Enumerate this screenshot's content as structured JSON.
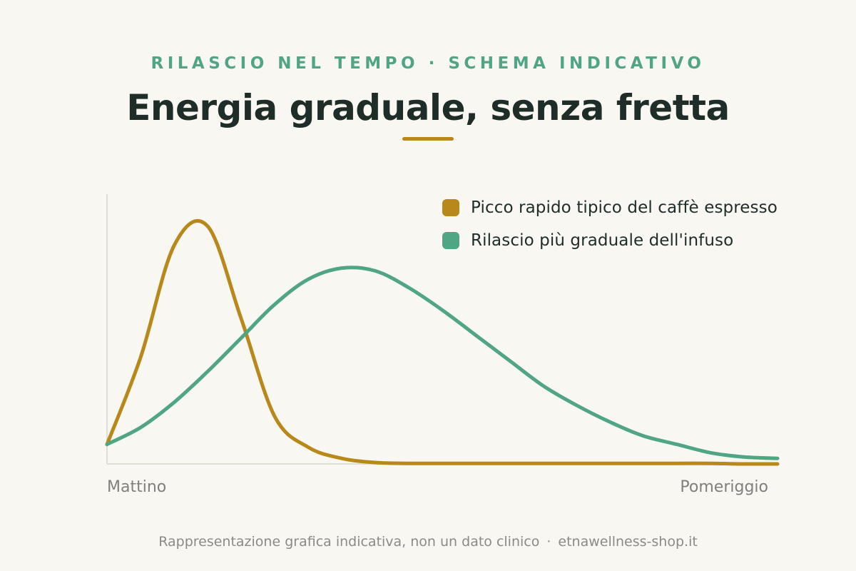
{
  "header": {
    "kicker": "RILASCIO NEL TEMPO · SCHEMA INDICATIVO",
    "title": "Energia graduale, senza fretta",
    "accent_color": "#b8891a"
  },
  "chart_data": {
    "type": "line",
    "title": "Energia graduale, senza fretta",
    "subtitle": "RILASCIO NEL TEMPO · SCHEMA INDICATIVO",
    "x_tick_labels": [
      "Mattino",
      "Pomeriggio"
    ],
    "xlim": [
      0,
      1
    ],
    "ylim": [
      0,
      1
    ],
    "grid": false,
    "y_axis_labels_shown": false,
    "legend_position": "top-right",
    "x": [
      0,
      0.05,
      0.1,
      0.15,
      0.2,
      0.25,
      0.3,
      0.35,
      0.4,
      0.45,
      0.5,
      0.55,
      0.6,
      0.65,
      0.7,
      0.75,
      0.8,
      0.85,
      0.9,
      0.95,
      1
    ],
    "series": [
      {
        "name": "Picco rapido tipico del caffè espresso",
        "color": "#b8891a",
        "values": [
          0.07,
          0.38,
          0.78,
          0.85,
          0.52,
          0.17,
          0.06,
          0.02,
          0.005,
          0.002,
          0.002,
          0.002,
          0.002,
          0.002,
          0.002,
          0.002,
          0.002,
          0.002,
          0.002,
          0.0,
          0.0
        ]
      },
      {
        "name": "Rilascio più graduale dell'infuso",
        "color": "#4fa584",
        "values": [
          0.07,
          0.13,
          0.22,
          0.33,
          0.45,
          0.57,
          0.66,
          0.7,
          0.69,
          0.63,
          0.55,
          0.46,
          0.37,
          0.28,
          0.21,
          0.15,
          0.1,
          0.07,
          0.04,
          0.025,
          0.02
        ]
      }
    ],
    "axis_color": "#e2ddd2"
  },
  "footer": {
    "note": "Rappresentazione grafica indicativa, non un dato clinico",
    "separator": "·",
    "site": "etnawellness-shop.it"
  }
}
